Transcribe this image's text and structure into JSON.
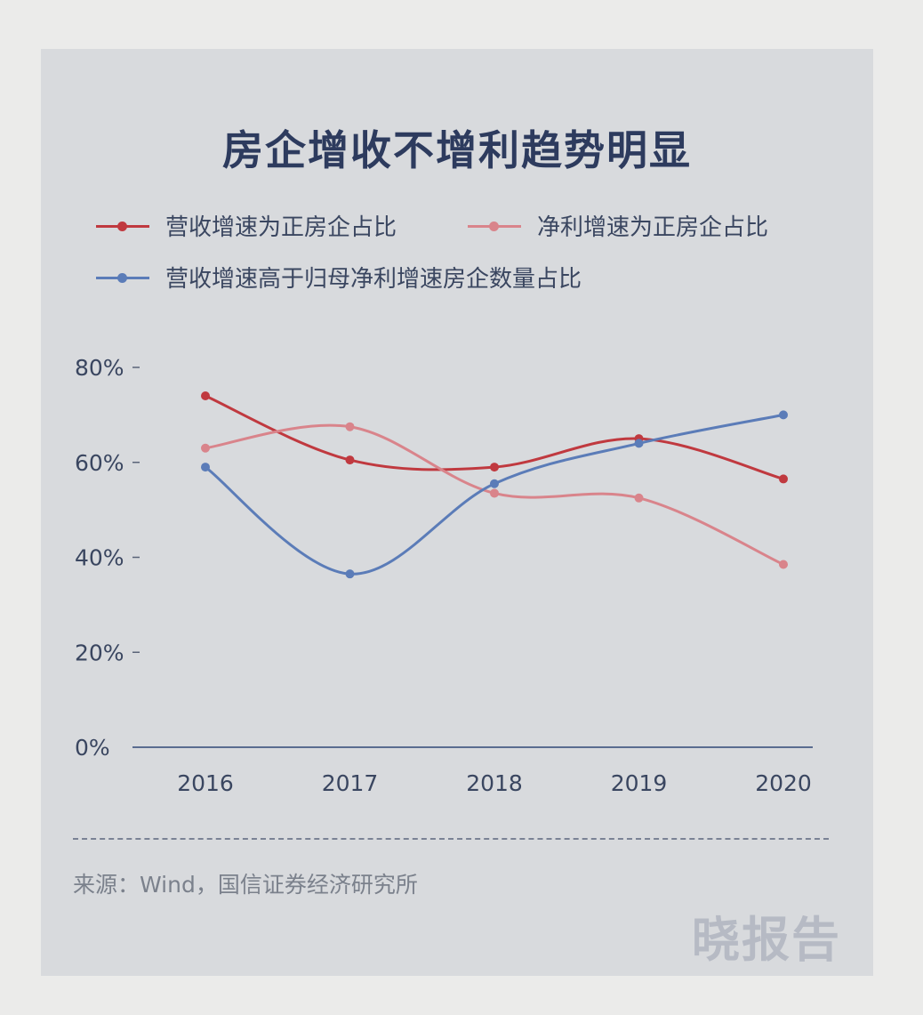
{
  "title": "房企增收不增利趋势明显",
  "legend": [
    {
      "label": "营收增速为正房企占比",
      "color": "#c0393f"
    },
    {
      "label": "净利增速为正房企占比",
      "color": "#d9848b"
    },
    {
      "label": "营收增速高于归母净利增速房企数量占比",
      "color": "#5b7cb8"
    }
  ],
  "source": "来源：Wind，国信证券经济研究所",
  "watermark": "晓报告",
  "chart_data": {
    "type": "line",
    "title": "房企增收不增利趋势明显",
    "categories": [
      "2016",
      "2017",
      "2018",
      "2019",
      "2020"
    ],
    "y_ticks": [
      "0%",
      "20%",
      "40%",
      "60%",
      "80%"
    ],
    "ylim": [
      0,
      80
    ],
    "series": [
      {
        "name": "营收增速为正房企占比",
        "color": "#c0393f",
        "values": [
          74,
          60.5,
          59,
          65,
          56.5
        ]
      },
      {
        "name": "净利增速为正房企占比",
        "color": "#d9848b",
        "values": [
          63,
          67.5,
          53.5,
          52.5,
          38.5
        ]
      },
      {
        "name": "营收增速高于归母净利增速房企数量占比",
        "color": "#5b7cb8",
        "values": [
          59,
          36.5,
          55.5,
          64,
          70
        ]
      }
    ]
  }
}
